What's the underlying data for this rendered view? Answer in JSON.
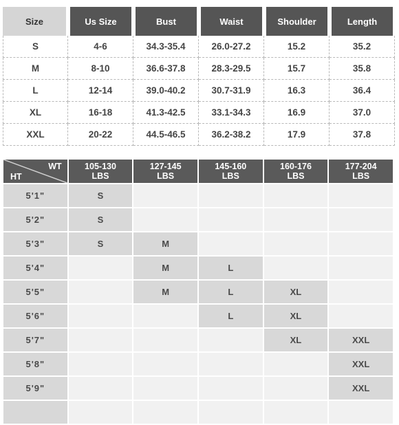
{
  "size_table": {
    "headers": [
      "Size",
      "Us Size",
      "Bust",
      "Waist",
      "Shoulder",
      "Length"
    ],
    "rows": [
      [
        "S",
        "4-6",
        "34.3-35.4",
        "26.0-27.2",
        "15.2",
        "35.2"
      ],
      [
        "M",
        "8-10",
        "36.6-37.8",
        "28.3-29.5",
        "15.7",
        "35.8"
      ],
      [
        "L",
        "12-14",
        "39.0-40.2",
        "30.7-31.9",
        "16.3",
        "36.4"
      ],
      [
        "XL",
        "16-18",
        "41.3-42.5",
        "33.1-34.3",
        "16.9",
        "37.0"
      ],
      [
        "XXL",
        "20-22",
        "44.5-46.5",
        "36.2-38.2",
        "17.9",
        "37.8"
      ]
    ]
  },
  "hw_grid": {
    "corner": {
      "wt_label": "WT",
      "ht_label": "HT"
    },
    "weight_ranges": [
      {
        "range": "105-130",
        "unit": "LBS"
      },
      {
        "range": "127-145",
        "unit": "LBS"
      },
      {
        "range": "145-160",
        "unit": "LBS"
      },
      {
        "range": "160-176",
        "unit": "LBS"
      },
      {
        "range": "177-204",
        "unit": "LBS"
      }
    ],
    "rows": [
      {
        "height": "5'1\"",
        "cells": [
          "S",
          "",
          "",
          "",
          ""
        ]
      },
      {
        "height": "5'2\"",
        "cells": [
          "S",
          "",
          "",
          "",
          ""
        ]
      },
      {
        "height": "5'3\"",
        "cells": [
          "S",
          "M",
          "",
          "",
          ""
        ]
      },
      {
        "height": "5'4\"",
        "cells": [
          "",
          "M",
          "L",
          "",
          ""
        ]
      },
      {
        "height": "5'5\"",
        "cells": [
          "",
          "M",
          "L",
          "XL",
          ""
        ]
      },
      {
        "height": "5'6\"",
        "cells": [
          "",
          "",
          "L",
          "XL",
          ""
        ]
      },
      {
        "height": "5'7\"",
        "cells": [
          "",
          "",
          "",
          "XL",
          "XXL"
        ]
      },
      {
        "height": "5'8\"",
        "cells": [
          "",
          "",
          "",
          "",
          "XXL"
        ]
      },
      {
        "height": "5'9\"",
        "cells": [
          "",
          "",
          "",
          "",
          "XXL"
        ]
      },
      {
        "height": "",
        "cells": [
          "",
          "",
          "",
          "",
          ""
        ]
      }
    ]
  }
}
